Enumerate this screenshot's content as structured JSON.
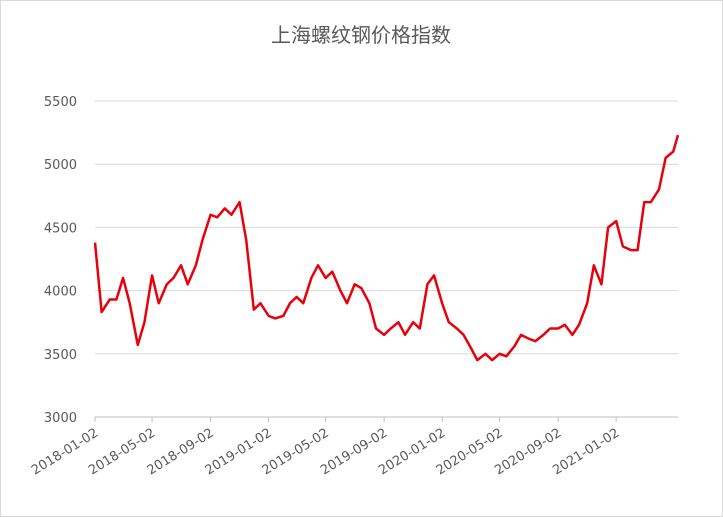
{
  "chart_data": {
    "type": "line",
    "title": "上海螺纹钢价格指数",
    "x": [
      "2018-01-02",
      "2018-01-16",
      "2018-02-02",
      "2018-02-16",
      "2018-03-02",
      "2018-03-16",
      "2018-04-02",
      "2018-04-16",
      "2018-05-02",
      "2018-05-16",
      "2018-06-02",
      "2018-06-16",
      "2018-07-02",
      "2018-07-16",
      "2018-08-02",
      "2018-08-16",
      "2018-09-02",
      "2018-09-16",
      "2018-10-02",
      "2018-10-16",
      "2018-11-02",
      "2018-11-16",
      "2018-12-02",
      "2018-12-16",
      "2019-01-02",
      "2019-01-16",
      "2019-02-02",
      "2019-02-16",
      "2019-03-02",
      "2019-03-16",
      "2019-04-02",
      "2019-04-16",
      "2019-05-02",
      "2019-05-16",
      "2019-06-02",
      "2019-06-16",
      "2019-07-02",
      "2019-07-16",
      "2019-08-02",
      "2019-08-16",
      "2019-09-02",
      "2019-09-16",
      "2019-10-02",
      "2019-10-16",
      "2019-11-02",
      "2019-11-16",
      "2019-12-02",
      "2019-12-16",
      "2020-01-02",
      "2020-01-16",
      "2020-02-02",
      "2020-02-16",
      "2020-03-02",
      "2020-03-16",
      "2020-04-02",
      "2020-04-16",
      "2020-05-02",
      "2020-05-16",
      "2020-06-02",
      "2020-06-16",
      "2020-07-02",
      "2020-07-16",
      "2020-08-02",
      "2020-08-16",
      "2020-09-02",
      "2020-09-16",
      "2020-10-02",
      "2020-10-16",
      "2020-11-02",
      "2020-11-16",
      "2020-12-02",
      "2020-12-16",
      "2021-01-02",
      "2021-01-16",
      "2021-02-02",
      "2021-02-16",
      "2021-03-02",
      "2021-03-16",
      "2021-04-02",
      "2021-04-16",
      "2021-05-02",
      "2021-05-12"
    ],
    "series": [
      {
        "name": "上海螺纹钢价格指数",
        "color": "#e8000b",
        "values": [
          4380,
          3830,
          3930,
          3930,
          4100,
          3900,
          3570,
          3750,
          4120,
          3900,
          4050,
          4100,
          4200,
          4050,
          4200,
          4400,
          4600,
          4580,
          4650,
          4600,
          4700,
          4400,
          3850,
          3900,
          3800,
          3780,
          3800,
          3900,
          3950,
          3900,
          4100,
          4200,
          4100,
          4150,
          4000,
          3900,
          4050,
          4020,
          3900,
          3700,
          3650,
          3700,
          3750,
          3650,
          3750,
          3700,
          4050,
          4120,
          3900,
          3750,
          3700,
          3650,
          3550,
          3450,
          3500,
          3450,
          3500,
          3480,
          3560,
          3650,
          3620,
          3600,
          3650,
          3700,
          3700,
          3730,
          3650,
          3730,
          3900,
          4200,
          4050,
          4500,
          4550,
          4350,
          4320,
          4320,
          4700,
          4700,
          4800,
          5050,
          5100,
          5230
        ]
      }
    ],
    "xlim": [
      "2018-01-02",
      "2021-05-12"
    ],
    "xticks": [
      "2018-01-02",
      "2018-05-02",
      "2018-09-02",
      "2019-01-02",
      "2019-05-02",
      "2019-09-02",
      "2020-01-02",
      "2020-05-02",
      "2020-09-02",
      "2021-01-02"
    ],
    "ylim": [
      3000,
      5500
    ],
    "yticks": [
      3000,
      3500,
      4000,
      4500,
      5000,
      5500
    ],
    "grid": true
  }
}
